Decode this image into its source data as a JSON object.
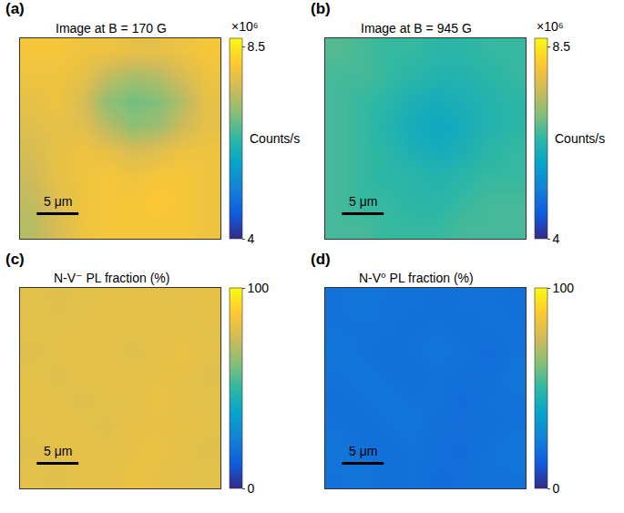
{
  "chart_data": [
    {
      "type": "heatmap",
      "panel": "(a)",
      "title": "Image at B = 170 G",
      "x": [
        1.5,
        4.5,
        7.5,
        10.5,
        13.5,
        16.5,
        19.5,
        22.5
      ],
      "y": [
        1.5,
        4.5,
        7.5,
        10.5,
        13.5,
        16.5,
        19.5,
        22.5
      ],
      "z": [
        [
          7.3,
          7.6,
          7.9,
          8.0,
          8.0,
          8.0,
          8.0,
          7.9
        ],
        [
          7.4,
          7.7,
          7.9,
          8.0,
          8.0,
          8.1,
          8.0,
          7.9
        ],
        [
          7.5,
          7.8,
          7.9,
          8.0,
          7.9,
          8.0,
          8.0,
          7.9
        ],
        [
          7.6,
          7.8,
          7.9,
          7.8,
          7.6,
          7.7,
          7.9,
          7.9
        ],
        [
          7.7,
          7.8,
          7.7,
          7.3,
          7.0,
          7.1,
          7.5,
          7.8
        ],
        [
          7.8,
          7.9,
          7.6,
          7.0,
          6.8,
          6.9,
          7.3,
          7.8
        ],
        [
          7.9,
          7.9,
          7.8,
          7.4,
          7.2,
          7.3,
          7.6,
          7.9
        ],
        [
          8.0,
          8.0,
          7.9,
          7.9,
          7.8,
          7.8,
          7.9,
          8.0
        ]
      ],
      "xlim": [
        0,
        24
      ],
      "ylim": [
        0,
        24
      ],
      "tick_labels": false,
      "colorbar_range": [
        4,
        8.7
      ],
      "colorbar_ticks": [
        8.5,
        4
      ],
      "colorbar_title": "Counts/s",
      "colorbar_multiplier": "×10⁶",
      "scale_bar": {
        "length": 5,
        "label": "5 μm"
      }
    },
    {
      "type": "heatmap",
      "panel": "(b)",
      "title": "Image at B = 945 G",
      "x": [
        1.5,
        4.5,
        7.5,
        10.5,
        13.5,
        16.5,
        19.5,
        22.5
      ],
      "y": [
        1.5,
        4.5,
        7.5,
        10.5,
        13.5,
        16.5,
        19.5,
        22.5
      ],
      "z": [
        [
          6.5,
          6.5,
          6.4,
          6.4,
          6.4,
          6.5,
          6.5,
          6.5
        ],
        [
          6.5,
          6.4,
          6.4,
          6.3,
          6.3,
          6.4,
          6.5,
          6.5
        ],
        [
          6.5,
          6.4,
          6.3,
          6.3,
          6.2,
          6.3,
          6.4,
          6.4
        ],
        [
          6.5,
          6.4,
          6.3,
          6.1,
          6.0,
          6.1,
          6.3,
          6.4
        ],
        [
          6.5,
          6.4,
          6.2,
          6.0,
          5.9,
          6.0,
          6.2,
          6.3
        ],
        [
          6.5,
          6.4,
          6.3,
          6.1,
          6.0,
          6.1,
          6.2,
          6.3
        ],
        [
          6.5,
          6.5,
          6.4,
          6.3,
          6.2,
          6.2,
          6.3,
          6.4
        ],
        [
          6.6,
          6.5,
          6.4,
          6.4,
          6.3,
          6.3,
          6.4,
          6.4
        ]
      ],
      "xlim": [
        0,
        24
      ],
      "ylim": [
        0,
        24
      ],
      "tick_labels": false,
      "colorbar_range": [
        4,
        8.7
      ],
      "colorbar_ticks": [
        8.5,
        4
      ],
      "colorbar_title": "Counts/s",
      "colorbar_multiplier": "×10⁶",
      "scale_bar": {
        "length": 5,
        "label": "5 μm"
      }
    },
    {
      "type": "heatmap",
      "panel": "(c)",
      "title": "N-V⁻ PL fraction (%)",
      "x": [
        1.5,
        4.5,
        7.5,
        10.5,
        13.5,
        16.5,
        19.5,
        22.5
      ],
      "y": [
        1.5,
        4.5,
        7.5,
        10.5,
        13.5,
        16.5,
        19.5,
        22.5
      ],
      "z": [
        [
          80,
          79,
          81,
          80,
          82,
          81,
          80,
          80
        ],
        [
          79,
          80,
          81,
          80,
          81,
          82,
          80,
          79
        ],
        [
          80,
          81,
          80,
          79,
          81,
          81,
          81,
          80
        ],
        [
          81,
          80,
          79,
          80,
          80,
          82,
          80,
          80
        ],
        [
          80,
          79,
          80,
          81,
          80,
          81,
          81,
          79
        ],
        [
          79,
          80,
          81,
          80,
          79,
          80,
          82,
          80
        ],
        [
          80,
          80,
          80,
          81,
          80,
          81,
          80,
          80
        ],
        [
          80,
          79,
          80,
          80,
          81,
          80,
          80,
          81
        ]
      ],
      "xlim": [
        0,
        24
      ],
      "ylim": [
        0,
        24
      ],
      "tick_labels": false,
      "colorbar_range": [
        0,
        100
      ],
      "colorbar_ticks": [
        100,
        0
      ],
      "scale_bar": {
        "length": 5,
        "label": "5 μm"
      }
    },
    {
      "type": "heatmap",
      "panel": "(d)",
      "title": "N-V⁰ PL fraction (%)",
      "x": [
        1.5,
        4.5,
        7.5,
        10.5,
        13.5,
        16.5,
        19.5,
        22.5
      ],
      "y": [
        1.5,
        4.5,
        7.5,
        10.5,
        13.5,
        16.5,
        19.5,
        22.5
      ],
      "z": [
        [
          20,
          21,
          19,
          20,
          18,
          19,
          20,
          20
        ],
        [
          21,
          20,
          19,
          20,
          19,
          18,
          20,
          21
        ],
        [
          20,
          19,
          20,
          21,
          19,
          19,
          19,
          20
        ],
        [
          19,
          20,
          21,
          20,
          20,
          18,
          20,
          20
        ],
        [
          20,
          21,
          20,
          19,
          20,
          19,
          19,
          21
        ],
        [
          21,
          20,
          19,
          20,
          21,
          20,
          18,
          20
        ],
        [
          20,
          20,
          20,
          19,
          20,
          19,
          20,
          20
        ],
        [
          20,
          21,
          20,
          20,
          19,
          20,
          20,
          19
        ]
      ],
      "xlim": [
        0,
        24
      ],
      "ylim": [
        0,
        24
      ],
      "tick_labels": false,
      "colorbar_range": [
        0,
        100
      ],
      "colorbar_ticks": [
        100,
        0
      ],
      "scale_bar": {
        "length": 5,
        "label": "5 μm"
      }
    }
  ]
}
